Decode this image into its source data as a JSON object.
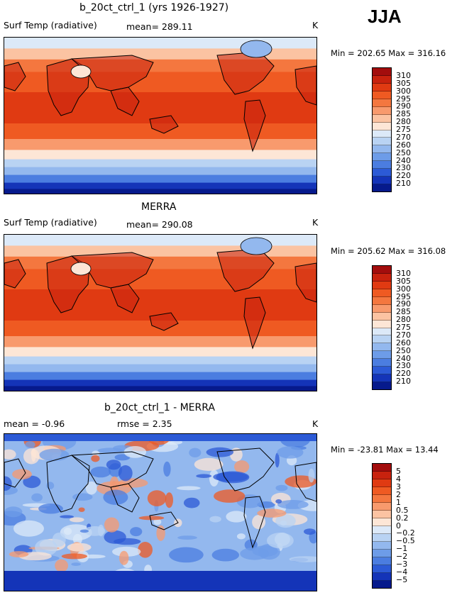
{
  "season": "JJA",
  "panels": [
    {
      "title": "b_20ct_ctrl_1 (yrs 1926-1927)",
      "left_label": "Surf Temp (radiative)",
      "center_label": "mean= 289.11",
      "right_label": "K",
      "minmax": "Min = 202.65  Max = 316.16",
      "kind": "abs",
      "colorbar_labels": [
        "310",
        "305",
        "300",
        "295",
        "290",
        "285",
        "280",
        "275",
        "270",
        "260",
        "250",
        "240",
        "230",
        "220",
        "210"
      ]
    },
    {
      "title": "MERRA",
      "left_label": "Surf Temp (radiative)",
      "center_label": "mean= 290.08",
      "right_label": "K",
      "minmax": "Min = 205.62  Max = 316.08",
      "kind": "abs",
      "colorbar_labels": [
        "310",
        "305",
        "300",
        "295",
        "290",
        "285",
        "280",
        "275",
        "270",
        "260",
        "250",
        "240",
        "230",
        "220",
        "210"
      ]
    },
    {
      "title": "b_20ct_ctrl_1 - MERRA",
      "left_label": "mean =   -0.96",
      "center_label": "rmse =    2.35",
      "right_label": "K",
      "minmax": "Min = -23.81  Max =  13.44",
      "kind": "diff",
      "colorbar_labels": [
        "5",
        "4",
        "3",
        "2",
        "1",
        "0.5",
        "0.2",
        "0",
        "-0.2",
        "-0.5",
        "-1",
        "-2",
        "-3",
        "-4",
        "-5"
      ]
    }
  ],
  "colors": {
    "abs_scale": [
      "#a30d0d",
      "#c8220e",
      "#e03a12",
      "#ef5a22",
      "#f4773f",
      "#f89a6d",
      "#fbc3a2",
      "#fde6d6",
      "#dce9f8",
      "#b9d3f3",
      "#93b8ee",
      "#6d9ce8",
      "#4b7de0",
      "#2c5ad6",
      "#1434b8",
      "#061a8c"
    ],
    "diff_scale": [
      "#a30d0d",
      "#c8220e",
      "#e03a12",
      "#ef5a22",
      "#f4773f",
      "#f89a6d",
      "#fbc3a2",
      "#fde6d6",
      "#dce9f8",
      "#b9d3f3",
      "#93b8ee",
      "#6d9ce8",
      "#4b7de0",
      "#2c5ad6",
      "#1434b8",
      "#061a8c"
    ]
  }
}
